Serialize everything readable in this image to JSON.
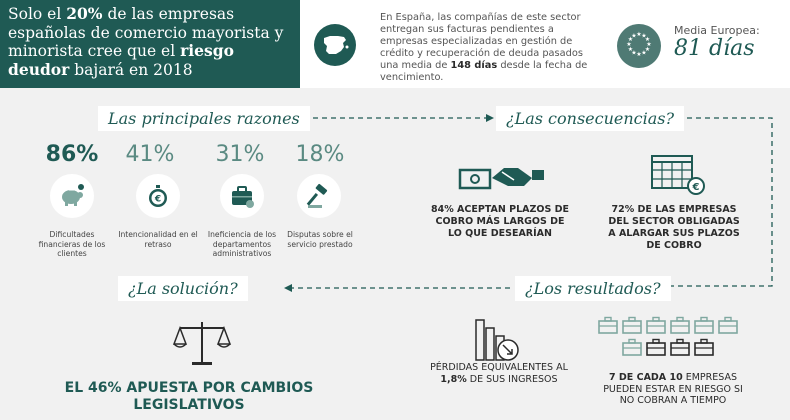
{
  "header": {
    "headline_parts": [
      {
        "text": "Solo el ",
        "bold": false
      },
      {
        "text": "20%",
        "bold": true
      },
      {
        "text": " de las empresas españolas de comercio mayorista y minorista cree que el ",
        "bold": false
      },
      {
        "text": "riesgo deudor",
        "bold": true
      },
      {
        "text": " bajará en 2018",
        "bold": false
      }
    ],
    "info_text_before": "En España, las compañías de este sector entregan sus facturas pendientes a empresas especializadas en gestión de crédito y recuperación de deuda pasados una media de ",
    "info_text_bold": "148 días",
    "info_text_after": " desde la fecha de vencimiento.",
    "media_label": "Media Europea:",
    "media_value": "81 días",
    "spain_icon": "spain-map-icon",
    "eu_icon": "eu-stars-icon"
  },
  "sections": {
    "reasons_title": "Las principales razones",
    "consequences_title": "¿Las consecuencias?",
    "results_title": "¿Los resultados?",
    "solution_title": "¿La solución?"
  },
  "reasons": [
    {
      "pct": "86%",
      "label": "Dificultades financieras de los clientes",
      "icon": "piggy-bank-icon"
    },
    {
      "pct": "41%",
      "label": "Intencionalidad en el retraso",
      "icon": "stopwatch-euro-icon"
    },
    {
      "pct": "31%",
      "label": "Ineficiencia de los departamentos administrativos",
      "icon": "briefcase-icon"
    },
    {
      "pct": "18%",
      "label": "Disputas sobre el servicio prestado",
      "icon": "gavel-icon"
    }
  ],
  "consequences": [
    {
      "text_bold": "84%",
      "text": " ACEPTAN PLAZOS DE COBRO MÁS LARGOS DE LO QUE DESEARÍAN",
      "icon": "handshake-money-icon"
    },
    {
      "text_bold": "72%",
      "text": " DE LAS EMPRESAS DEL SECTOR OBLIGADAS  A ALARGAR SUS PLAZOS DE COBRO",
      "icon": "calendar-euro-icon"
    }
  ],
  "results": [
    {
      "text_before": "PÉRDIDAS EQUIVALENTES AL ",
      "text_bold": "1,8%",
      "text_after": " DE SUS INGRESOS",
      "icon": "declining-bars-icon"
    },
    {
      "text_bold": "7 DE CADA 10",
      "text_after": " EMPRESAS PUEDEN ESTAR EN RIESGO SI NO COBRAN A TIEMPO",
      "icon": "briefcases-icon",
      "highlight_count": 7,
      "total_count": 10
    }
  ],
  "solution": {
    "text": "EL 46% APUESTA POR CAMBIOS LEGISLATIVOS",
    "icon": "scales-icon"
  },
  "colors": {
    "primary": "#1f5a54",
    "secondary": "#5a8a82",
    "light": "#7fa8a0",
    "background": "#f1f1f1"
  }
}
